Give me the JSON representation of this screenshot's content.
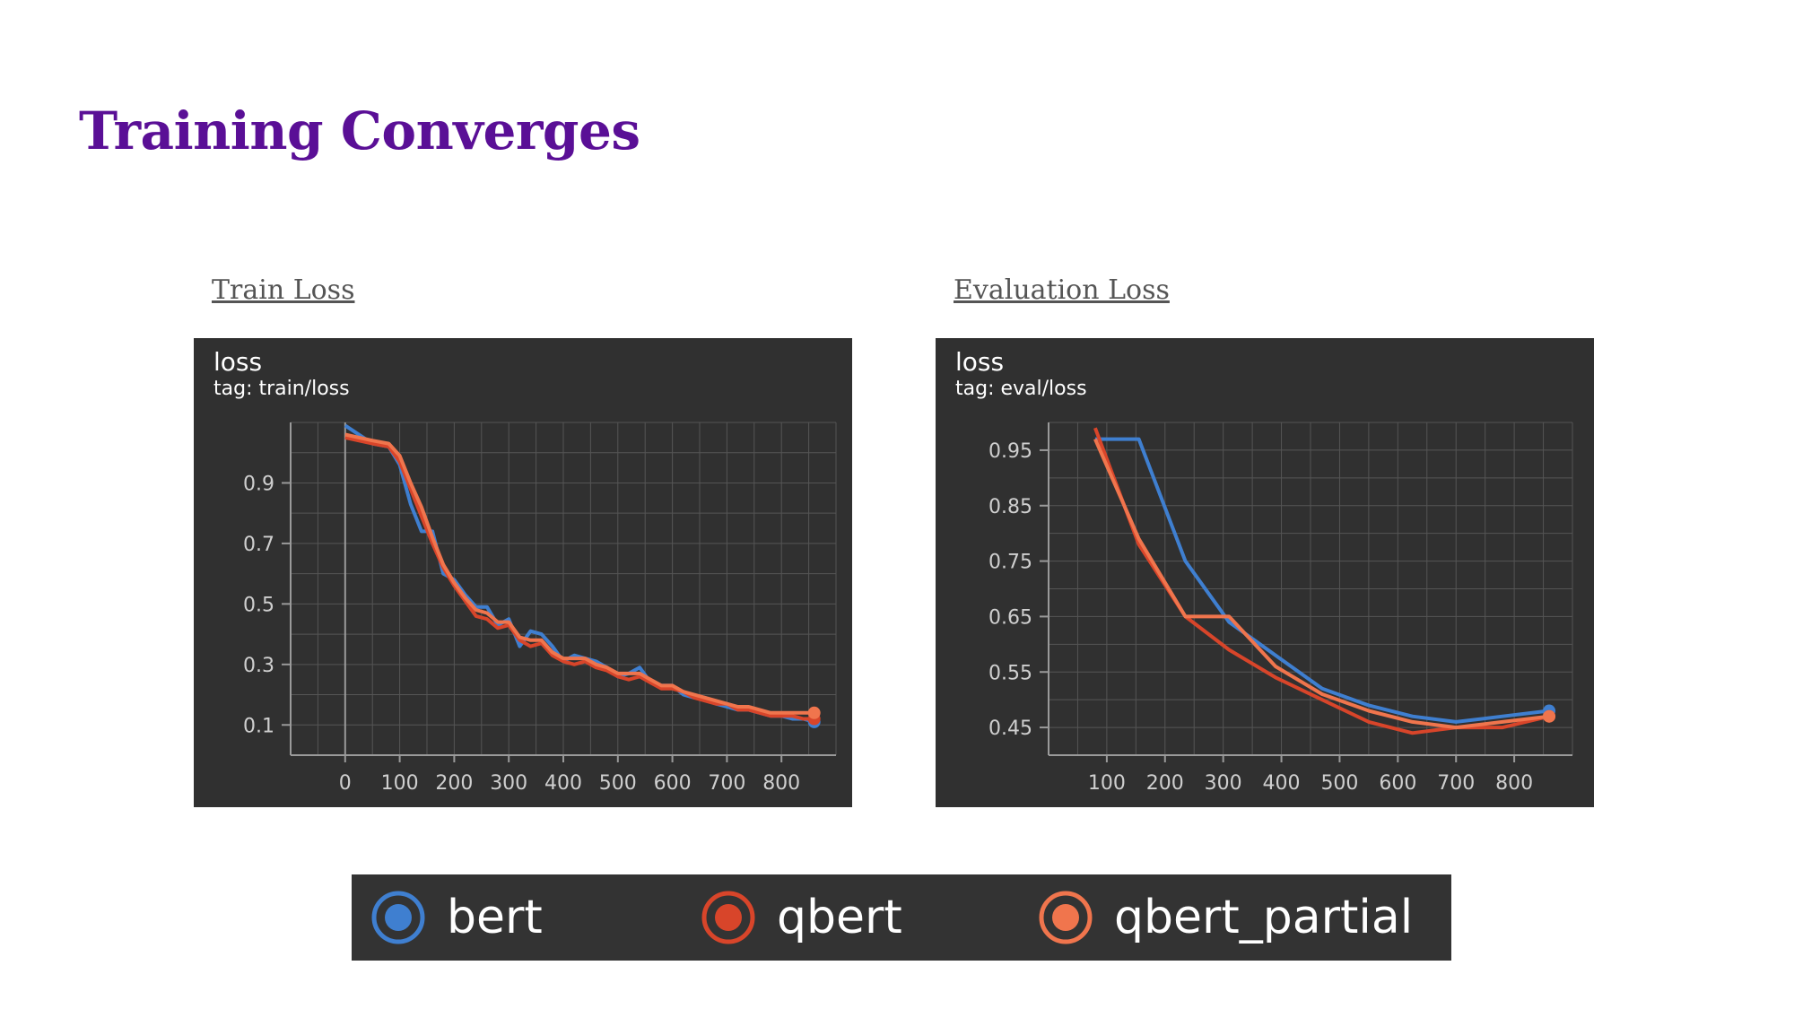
{
  "slide": {
    "title": "Training Converges"
  },
  "captions": {
    "left": "Train Loss",
    "right": "Evaluation Loss"
  },
  "colors": {
    "bert": "#3f7fd0",
    "qbert": "#d8452a",
    "qbert_partial": "#f0754d",
    "panel_bg": "#303030",
    "grid": "#555555",
    "axis": "#9a9a9a",
    "tick_text": "#cfcfcf",
    "title": "#5a0f96"
  },
  "legend": [
    {
      "name": "bert",
      "color": "#3f7fd0"
    },
    {
      "name": "qbert",
      "color": "#d8452a"
    },
    {
      "name": "qbert_partial",
      "color": "#f0754d"
    }
  ],
  "chart_data": [
    {
      "type": "line",
      "title": "loss",
      "subtitle": "tag: train/loss",
      "xlim": [
        -100,
        900
      ],
      "ylim": [
        0.0,
        1.1
      ],
      "xticks": [
        0,
        100,
        200,
        300,
        400,
        500,
        600,
        700,
        800
      ],
      "yticks": [
        0.1,
        0.3,
        0.5,
        0.7,
        0.9
      ],
      "grid": true,
      "x": [
        0,
        50,
        80,
        100,
        120,
        140,
        160,
        180,
        200,
        220,
        240,
        260,
        280,
        300,
        320,
        340,
        360,
        380,
        400,
        420,
        440,
        460,
        480,
        500,
        520,
        540,
        560,
        580,
        600,
        620,
        640,
        660,
        680,
        700,
        720,
        740,
        760,
        780,
        800,
        820,
        840,
        860
      ],
      "series": [
        {
          "name": "bert",
          "values": [
            1.09,
            1.03,
            1.02,
            0.96,
            0.83,
            0.74,
            0.74,
            0.6,
            0.58,
            0.53,
            0.49,
            0.49,
            0.43,
            0.45,
            0.36,
            0.41,
            0.4,
            0.36,
            0.31,
            0.33,
            0.32,
            0.31,
            0.29,
            0.26,
            0.27,
            0.29,
            0.24,
            0.23,
            0.23,
            0.2,
            0.19,
            0.19,
            0.17,
            0.16,
            0.15,
            0.15,
            0.14,
            0.13,
            0.13,
            0.12,
            0.12,
            0.11
          ]
        },
        {
          "name": "qbert",
          "values": [
            1.05,
            1.03,
            1.02,
            0.97,
            0.88,
            0.79,
            0.7,
            0.62,
            0.56,
            0.51,
            0.46,
            0.45,
            0.42,
            0.43,
            0.38,
            0.36,
            0.37,
            0.33,
            0.31,
            0.3,
            0.31,
            0.29,
            0.28,
            0.26,
            0.25,
            0.26,
            0.24,
            0.22,
            0.22,
            0.21,
            0.19,
            0.18,
            0.17,
            0.17,
            0.15,
            0.15,
            0.14,
            0.13,
            0.13,
            0.13,
            0.12,
            0.12
          ]
        },
        {
          "name": "qbert_partial",
          "values": [
            1.06,
            1.04,
            1.03,
            0.99,
            0.9,
            0.82,
            0.72,
            0.63,
            0.57,
            0.52,
            0.48,
            0.47,
            0.44,
            0.44,
            0.39,
            0.38,
            0.38,
            0.34,
            0.32,
            0.32,
            0.32,
            0.3,
            0.29,
            0.27,
            0.27,
            0.27,
            0.25,
            0.23,
            0.23,
            0.21,
            0.2,
            0.19,
            0.18,
            0.17,
            0.16,
            0.16,
            0.15,
            0.14,
            0.14,
            0.14,
            0.14,
            0.14
          ]
        }
      ]
    },
    {
      "type": "line",
      "title": "loss",
      "subtitle": "tag: eval/loss",
      "xlim": [
        0,
        900
      ],
      "ylim": [
        0.4,
        1.0
      ],
      "xticks": [
        100,
        200,
        300,
        400,
        500,
        600,
        700,
        800
      ],
      "yticks": [
        0.45,
        0.55,
        0.65,
        0.75,
        0.85,
        0.95
      ],
      "grid": true,
      "series": [
        {
          "name": "bert",
          "x": [
            80,
            155,
            235,
            310,
            390,
            470,
            550,
            625,
            700,
            780,
            860
          ],
          "values": [
            0.97,
            0.97,
            0.75,
            0.64,
            0.58,
            0.52,
            0.49,
            0.47,
            0.46,
            0.47,
            0.48
          ]
        },
        {
          "name": "qbert",
          "x": [
            80,
            155,
            235,
            310,
            390,
            470,
            550,
            625,
            700,
            780,
            860
          ],
          "values": [
            0.99,
            0.78,
            0.65,
            0.59,
            0.54,
            0.5,
            0.46,
            0.44,
            0.45,
            0.45,
            0.47
          ]
        },
        {
          "name": "qbert_partial",
          "x": [
            80,
            155,
            235,
            310,
            390,
            470,
            550,
            625,
            700,
            780,
            860
          ],
          "values": [
            0.97,
            0.79,
            0.65,
            0.65,
            0.56,
            0.51,
            0.48,
            0.46,
            0.45,
            0.46,
            0.47
          ]
        }
      ]
    }
  ]
}
